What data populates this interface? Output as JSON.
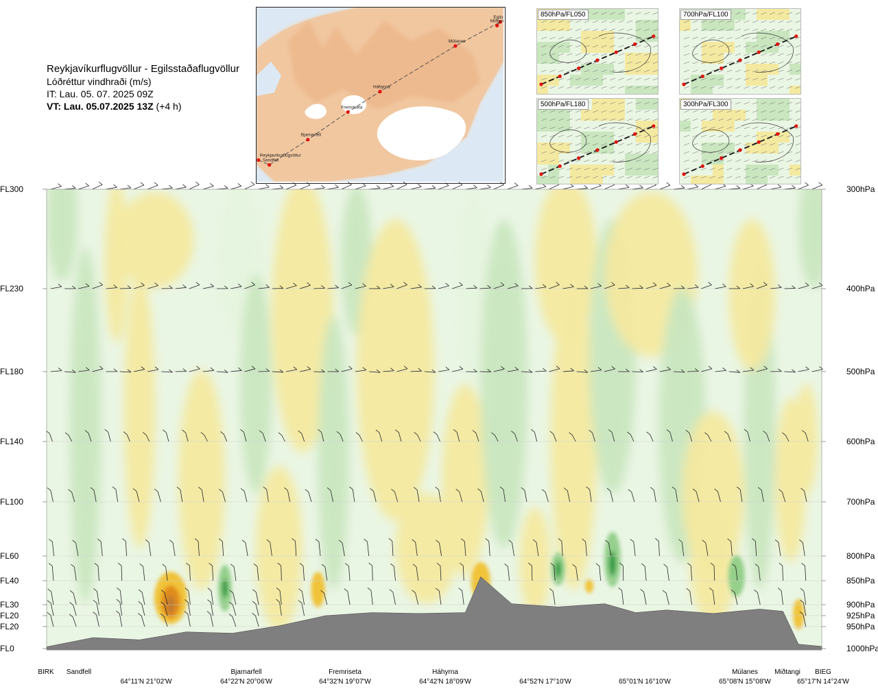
{
  "header": {
    "title": "Reykjavíkurflugvöllur - Egilsstaðaflugvöllur",
    "subtitle": "Lóðréttur vindhraði (m/s)",
    "it": "IT: Lau. 05. 07. 2025 09Z",
    "vt_main": "VT: Lau. 05.07.2025 13Z",
    "vt_offset": "(+4 h)"
  },
  "map": {
    "route_points": [
      {
        "name": "Reykjavíkurflugvöllur",
        "lon": -21.94,
        "lat": 64.13
      },
      {
        "name": "Sandfell",
        "lon": -21.6,
        "lat": 64.09
      },
      {
        "name": "Bjarnarfell",
        "lon": -20.4,
        "lat": 64.3
      },
      {
        "name": "Fremriseta",
        "lon": -19.15,
        "lat": 64.53
      },
      {
        "name": "Háhyrna",
        "lon": -18.15,
        "lat": 64.7
      },
      {
        "name": "Múlanes",
        "lon": -15.8,
        "lat": 65.08
      },
      {
        "name": "Egilsstaðir",
        "lon": -14.4,
        "lat": 65.28
      },
      {
        "name": "Miðtangi",
        "lon": -14.5,
        "lat": 65.25
      }
    ],
    "labels": [
      "Reykjavíkurflugvöllur",
      "Sandfell",
      "Bjarnarfell",
      "Fremriseta",
      "Háhyrna",
      "Múlanes",
      "Egilssta",
      "Miðtangi"
    ]
  },
  "mini_maps": [
    {
      "label": "850hPa/FL050"
    },
    {
      "label": "700hPa/FL100"
    },
    {
      "label": "500hPa/FL180"
    },
    {
      "label": "300hPa/FL300"
    }
  ],
  "chart_data": {
    "type": "heatmap",
    "quantity": "Lóðréttur vindhraði (m/s)",
    "x": [
      0.0,
      0.06,
      0.12,
      0.18,
      0.24,
      0.3,
      0.36,
      0.42,
      0.48,
      0.54,
      0.56,
      0.6,
      0.66,
      0.72,
      0.76,
      0.8,
      0.86,
      0.92,
      0.95,
      0.97,
      1.0
    ],
    "terrain_hpa": [
      996,
      975,
      980,
      962,
      965,
      948,
      925,
      918,
      920,
      918,
      842,
      898,
      905,
      898,
      918,
      912,
      920,
      910,
      915,
      990,
      995
    ],
    "y_levels": [
      {
        "fl": "FL300",
        "hpa": "300hPa"
      },
      {
        "fl": "FL230",
        "hpa": "400hPa"
      },
      {
        "fl": "FL180",
        "hpa": "500hPa"
      },
      {
        "fl": "FL140",
        "hpa": "600hPa"
      },
      {
        "fl": "FL100",
        "hpa": "700hPa"
      },
      {
        "fl": "FL60",
        "hpa": "800hPa"
      },
      {
        "fl": "FL40",
        "hpa": "850hPa"
      },
      {
        "fl": "FL30",
        "hpa": "900hPa"
      },
      {
        "fl": "FL20",
        "hpa": "925hPa"
      },
      {
        "fl": "FL20",
        "hpa": "950hPa"
      },
      {
        "fl": "FL0",
        "hpa": "1000hPa"
      }
    ],
    "x_points": [
      {
        "name": "BIRK",
        "coord": ""
      },
      {
        "name": "Sandfell",
        "coord": ""
      },
      {
        "name": "",
        "coord": "64°11'N 21°02'W"
      },
      {
        "name": "Bjarnarfell",
        "coord": "64°22'N 20°06'W"
      },
      {
        "name": "Fremriseta",
        "coord": "64°32'N 19°07'W"
      },
      {
        "name": "Háhyrna",
        "coord": "64°42'N 18°09'W"
      },
      {
        "name": "",
        "coord": "64°52'N 17°10'W"
      },
      {
        "name": "",
        "coord": "65°01'N 16°10'W"
      },
      {
        "name": "Múlanes",
        "coord": "65°08'N 15°08'W"
      },
      {
        "name": "Miðtangi",
        "coord": ""
      },
      {
        "name": "BIEG",
        "coord": "65°17'N 14°24'W"
      }
    ],
    "colors": {
      "strong_down": "#c07a2e",
      "down3": "#e08a1e",
      "down2": "#f0c030",
      "down1": "#f4e9a0",
      "calm": "#ffffff",
      "up1": "#e6f4de",
      "up2": "#c9e6bf",
      "up3": "#8fce88",
      "strong_up": "#2f9a40",
      "terrain": "#7f7f7f"
    }
  }
}
